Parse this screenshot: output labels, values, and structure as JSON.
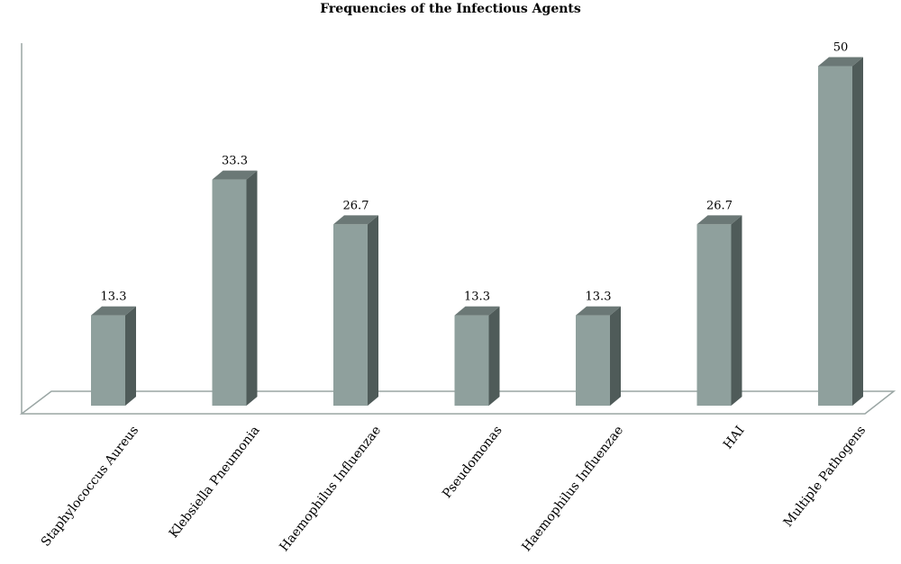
{
  "chart_data": {
    "type": "bar",
    "title": "Frequencies of the Infectious Agents",
    "categories": [
      "Staphylococcus Aureus",
      "Klebsiella Pneumonia",
      "Haemophilus Influenzae",
      "Pseudomonas",
      "Haemophilus Influenzae",
      "HAI",
      "Multiple Pathogens"
    ],
    "values": [
      13.3,
      33.3,
      26.7,
      13.3,
      13.3,
      26.7,
      50
    ],
    "value_labels": [
      "13.3",
      "33.3",
      "26.7",
      "13.3",
      "13.3",
      "26.7",
      "50"
    ],
    "xlabel": "",
    "ylabel": "",
    "ylim": [
      0,
      50
    ],
    "grid": false,
    "legend": "none",
    "three_d": true,
    "colors": {
      "bar_front": "#8fa09d",
      "bar_side": "#4f5b59",
      "bar_top": "#6b7876",
      "floor_stroke": "#9aa6a4",
      "wall_stroke": "#9aa6a4"
    }
  }
}
